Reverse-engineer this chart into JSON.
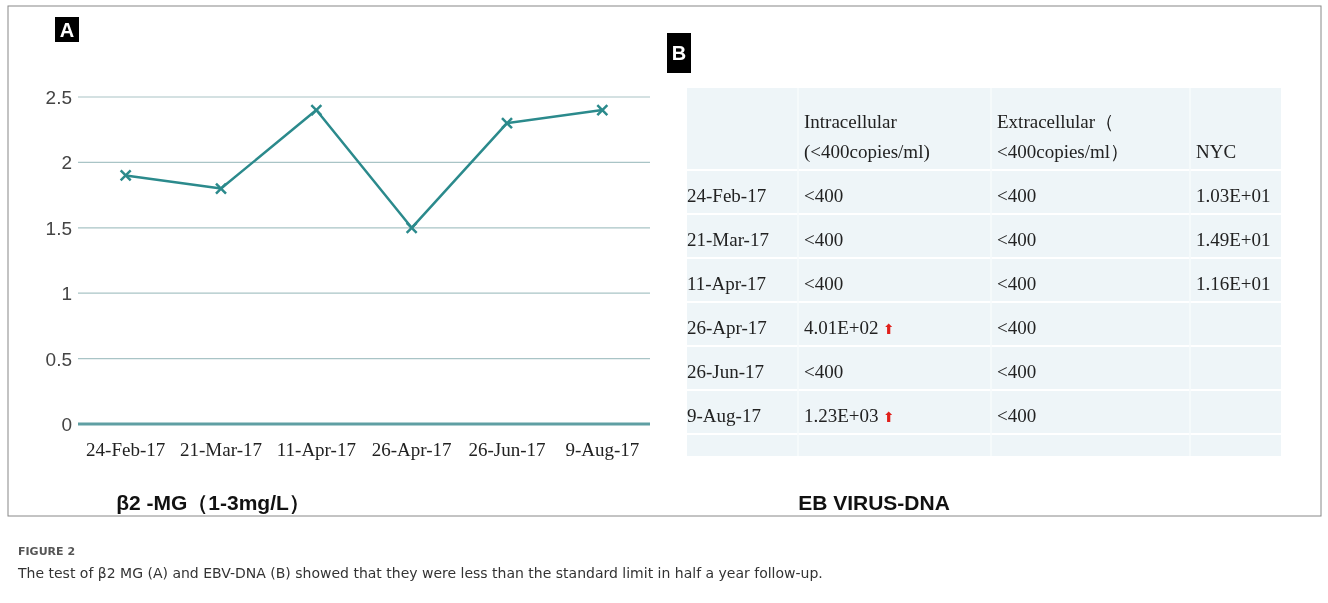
{
  "chart_data": [
    {
      "type": "line",
      "xlabel": "β2 -MG（1-3mg/L）",
      "annotations": [
        "A"
      ],
      "categories": [
        "24-Feb-17",
        "21-Mar-17",
        "11-Apr-17",
        "26-Apr-17",
        "26-Jun-17",
        "9-Aug-17"
      ],
      "series": [
        {
          "color": "#2b8a8c",
          "values": [
            1.9,
            1.8,
            2.4,
            1.5,
            2.3,
            2.4
          ]
        }
      ],
      "ylim": [
        0,
        2.5
      ],
      "yticks": [
        0,
        0.5,
        1,
        1.5,
        2,
        2.5
      ],
      "grid": "y",
      "marker": "cross",
      "line_style": "solid"
    },
    {
      "type": "other",
      "title": "EB VIRUS-DNA",
      "annotations": [
        "B",
        "FIGURE 2",
        "The test of β2 MG (A) and EBV-DNA (B) showed that they were less than the standard limit in half a year follow-up."
      ],
      "categories": [
        "Intracellular (<400copies/ml)",
        "Extracellular（<400copies/ml）",
        "NYC"
      ],
      "y_categories": [
        "24-Feb-17",
        "21-Mar-17",
        "11-Apr-17",
        "26-Apr-17",
        "26-Jun-17",
        "9-Aug-17"
      ],
      "cell_labels": [
        [
          "<400",
          "<400",
          "1.03E+01"
        ],
        [
          "<400",
          "<400",
          "1.49E+01"
        ],
        [
          "<400",
          "<400",
          "1.16E+01"
        ],
        [
          "4.01E+02 ⬆",
          "<400",
          null
        ],
        [
          "<400",
          "<400",
          null
        ],
        [
          "1.23E+03 ⬆",
          "<400",
          null
        ]
      ]
    }
  ]
}
